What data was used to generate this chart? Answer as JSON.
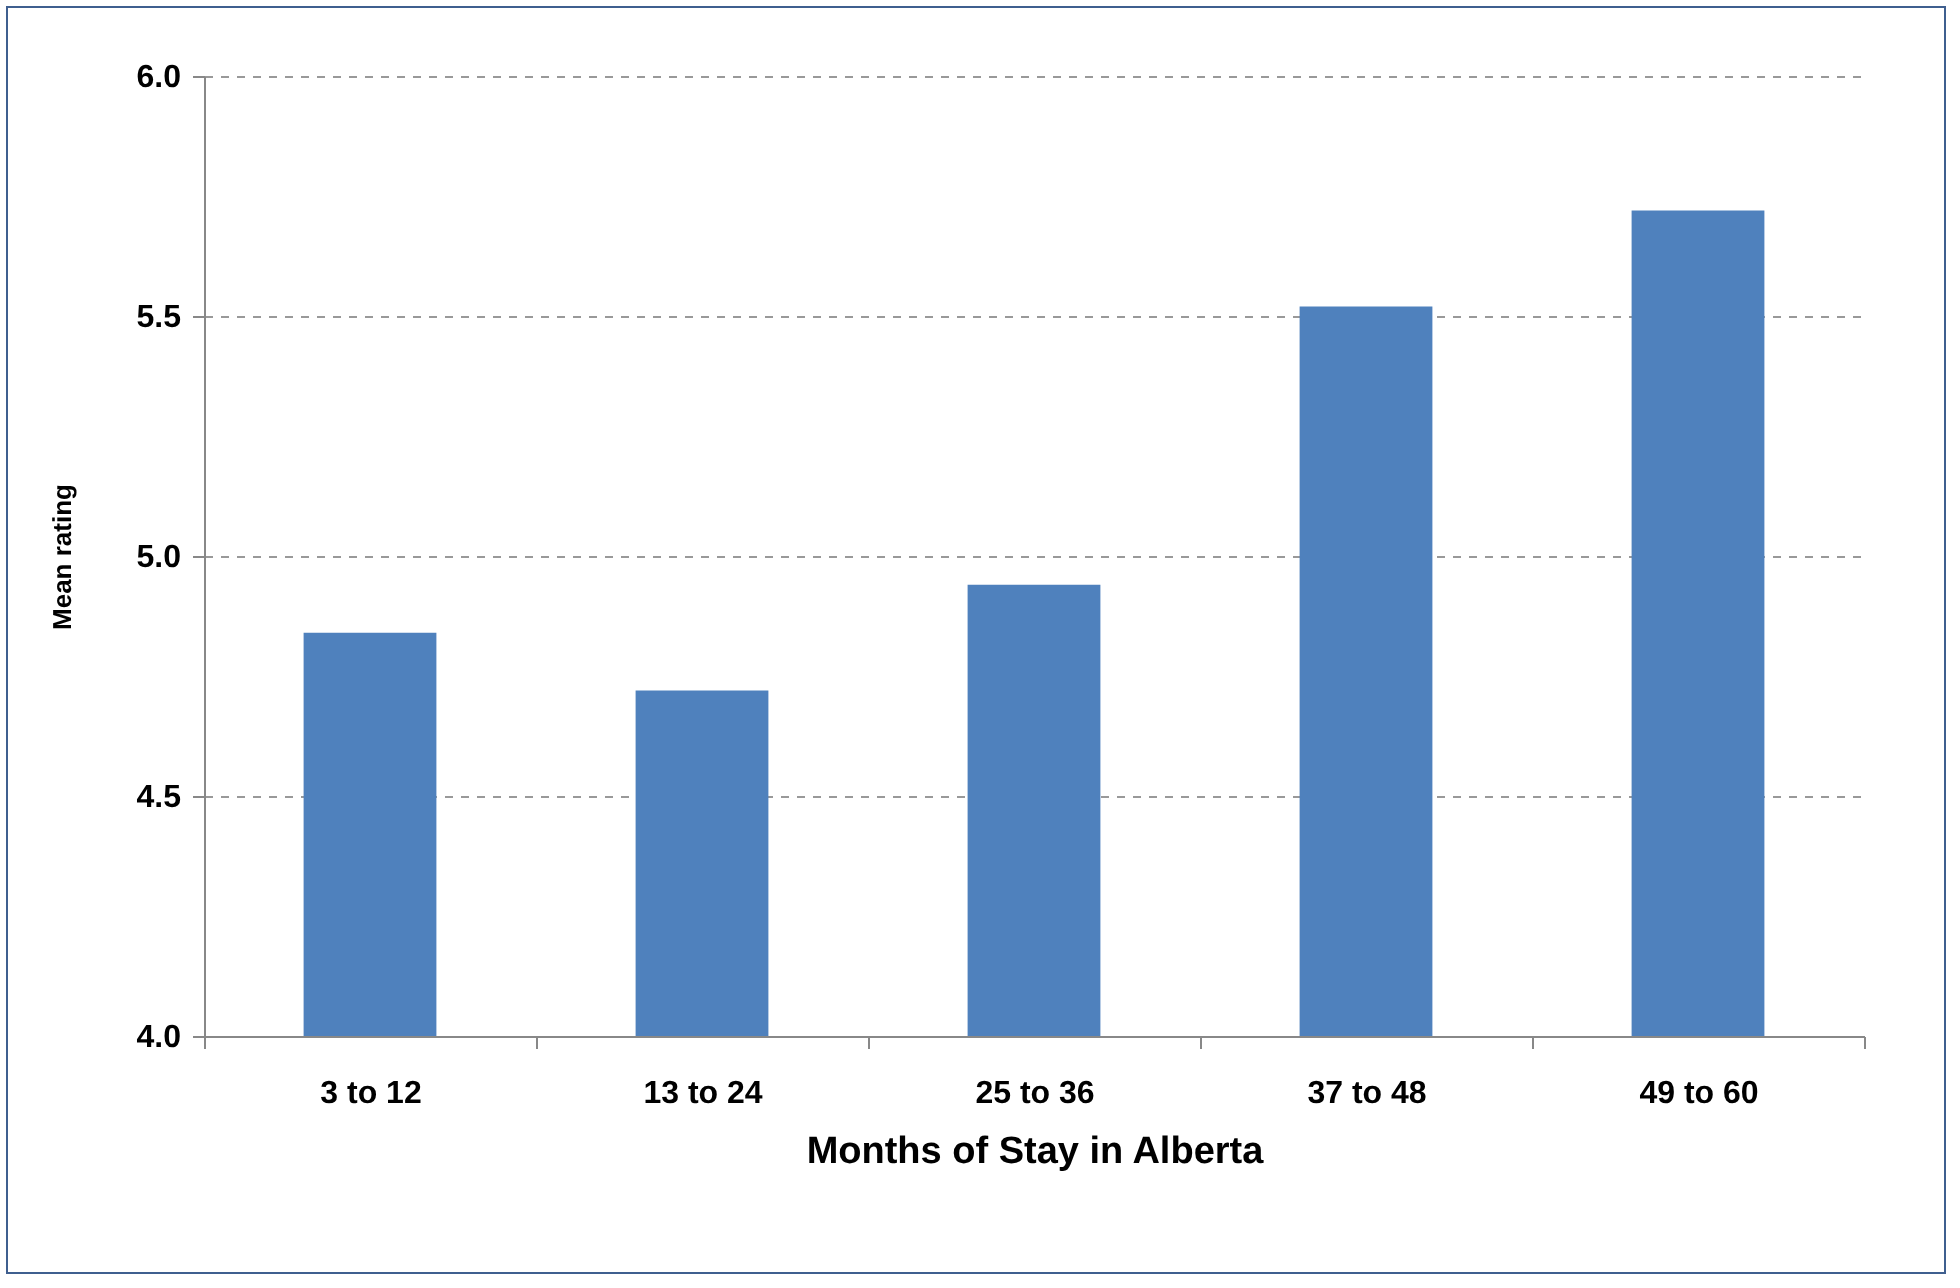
{
  "chart_data": {
    "type": "bar",
    "xlabel": "Months of Stay in Alberta",
    "ylabel": "Mean rating",
    "categories": [
      "3 to 12",
      "13 to 24",
      "25 to 36",
      "37 to 48",
      "49 to 60"
    ],
    "values": [
      4.84,
      4.72,
      4.94,
      5.52,
      5.72
    ],
    "color": "#4f81bd",
    "ylim": [
      4.0,
      6.0
    ],
    "yticks": [
      {
        "value": 4,
        "label": "4.0"
      },
      {
        "value": 4.5,
        "label": "4.5"
      },
      {
        "value": 5,
        "label": "5.0"
      },
      {
        "value": 5.5,
        "label": "5.5"
      },
      {
        "value": 6,
        "label": "6.0"
      }
    ],
    "grid": "y",
    "line_style": "dashed"
  }
}
